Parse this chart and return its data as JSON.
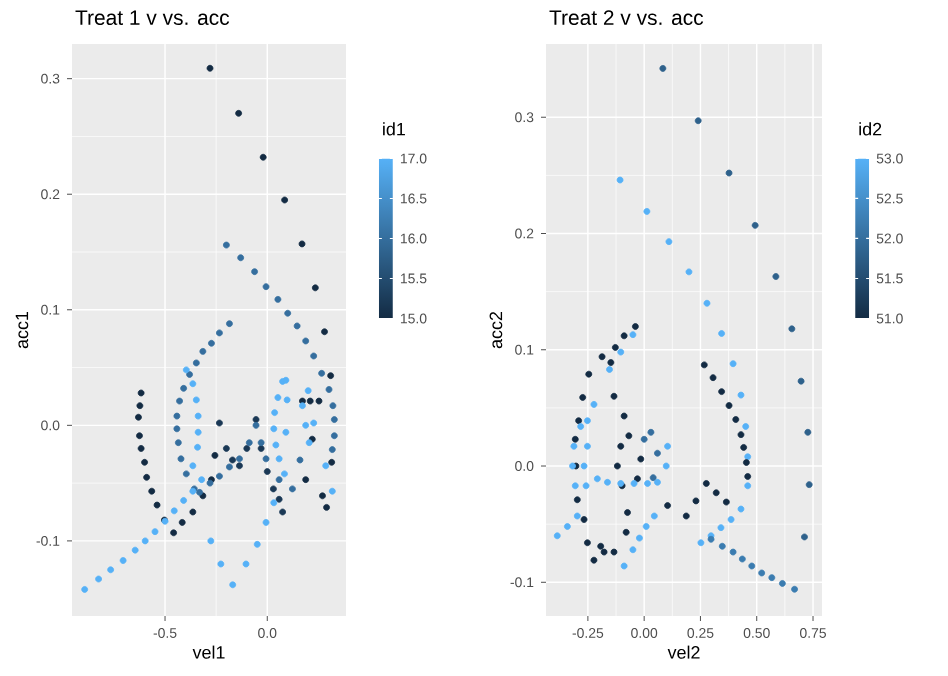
{
  "chart_data": [
    {
      "type": "scatter",
      "title": "Treat 1 v vs. acc",
      "xlabel": "vel1",
      "ylabel": "acc1",
      "clabel": "id1",
      "grid": true,
      "marker": "circle",
      "xlim": [
        -0.955,
        0.385
      ],
      "ylim": [
        -0.165,
        0.33
      ],
      "xticks": [
        {
          "value": -0.5,
          "label": "-0.5"
        },
        {
          "value": 0,
          "label": "0.0"
        }
      ],
      "yticks": [
        {
          "value": -0.1,
          "label": "-0.1"
        },
        {
          "value": 0,
          "label": "0.0"
        },
        {
          "value": 0.1,
          "label": "0.1"
        },
        {
          "value": 0.2,
          "label": "0.2"
        },
        {
          "value": 0.3,
          "label": "0.3"
        }
      ],
      "clim": [
        15,
        17
      ],
      "cticks": [
        {
          "value": 15,
          "label": "15.0"
        },
        {
          "value": 15.5,
          "label": "15.5"
        },
        {
          "value": 16,
          "label": "16.0"
        },
        {
          "value": 16.5,
          "label": "16.5"
        },
        {
          "value": 17,
          "label": "17.0"
        }
      ],
      "x": [
        -0.28,
        -0.14,
        -0.02,
        0.085,
        0.17,
        0.235,
        0.28,
        0.31,
        0.315,
        0.29,
        -0.617,
        -0.623,
        -0.63,
        -0.625,
        -0.617,
        -0.6,
        -0.59,
        -0.565,
        -0.539,
        -0.503,
        -0.458,
        -0.416,
        -0.364,
        -0.315,
        -0.273,
        -0.256,
        -0.234,
        -0.2,
        -0.17,
        -0.136,
        -0.1,
        -0.055,
        -0.03,
        0,
        0.03,
        0.058,
        0.075,
        0.172,
        0.21,
        0.253,
        0.22,
        0.188,
        0.27,
        -0.2,
        -0.13,
        -0.062,
        -0.006,
        0.052,
        0.1,
        0.146,
        0.188,
        0.227,
        0.266,
        0.302,
        0.321,
        0.328,
        0.328,
        0.318,
        -0.185,
        -0.234,
        -0.273,
        -0.315,
        -0.347,
        -0.38,
        -0.409,
        -0.429,
        -0.442,
        -0.442,
        -0.435,
        -0.422,
        -0.396,
        -0.357,
        -0.331,
        -0.28,
        -0.234,
        -0.185,
        -0.136,
        -0.088,
        -0.055,
        -0.03,
        -0.006,
        0.058,
        0.123,
        0.16,
        -0.893,
        -0.825,
        -0.766,
        -0.705,
        -0.646,
        -0.597,
        -0.549,
        -0.5,
        -0.455,
        -0.409,
        -0.364,
        -0.321,
        -0.396,
        -0.364,
        -0.347,
        -0.338,
        -0.338,
        -0.341,
        -0.364,
        -0.276,
        -0.227,
        -0.169,
        -0.104,
        -0.049,
        -0.006,
        0.032,
        0.075,
        0.052,
        0.036,
        0.032,
        0.042,
        0.058,
        0.084,
        0.091,
        0.097,
        0.091,
        0.172,
        0.188,
        0.205,
        0.227,
        0.2,
        0.286,
        0.318
      ],
      "values": [
        0.309,
        0.27,
        0.232,
        0.195,
        0.157,
        0.119,
        0.081,
        0.043,
        -0.032,
        -0.071,
        0.028,
        0.017,
        0.007,
        -0.009,
        -0.02,
        -0.032,
        -0.045,
        -0.057,
        -0.069,
        -0.082,
        -0.093,
        -0.084,
        -0.075,
        -0.061,
        -0.047,
        -0.026,
        0.002,
        -0.02,
        -0.03,
        -0.035,
        -0.02,
        0.005,
        -0.02,
        -0.04,
        -0.055,
        -0.064,
        -0.075,
        0.021,
        0.021,
        0.021,
        -0.012,
        -0.047,
        -0.061,
        0.156,
        0.145,
        0.133,
        0.12,
        0.109,
        0.097,
        0.086,
        0.073,
        0.06,
        0.045,
        0.031,
        0.017,
        0.005,
        -0.009,
        -0.021,
        0.088,
        0.08,
        0.071,
        0.064,
        0.054,
        0.044,
        0.032,
        0.021,
        0.008,
        -0.003,
        -0.015,
        -0.029,
        -0.042,
        -0.055,
        -0.058,
        -0.05,
        -0.044,
        -0.036,
        -0.029,
        -0.015,
        0,
        -0.015,
        -0.029,
        -0.047,
        -0.055,
        -0.03,
        -0.142,
        -0.133,
        -0.125,
        -0.117,
        -0.108,
        -0.1,
        -0.092,
        -0.083,
        -0.074,
        -0.065,
        -0.057,
        -0.047,
        0.048,
        0.036,
        0.022,
        0.008,
        -0.006,
        -0.019,
        -0.035,
        -0.1,
        -0.12,
        -0.138,
        -0.12,
        -0.103,
        -0.084,
        -0.067,
        0.038,
        0.024,
        0.011,
        -0.003,
        -0.017,
        -0.029,
        -0.042,
        0.039,
        0.022,
        -0.006,
        0.017,
        0,
        -0.015,
        0.002,
        0.03,
        -0.035,
        -0.057
      ],
      "cvalues": [
        15,
        15,
        15,
        15,
        15,
        15,
        15,
        15,
        15,
        15,
        15,
        15,
        15,
        15,
        15,
        15,
        15,
        15,
        15,
        15,
        15,
        15,
        15,
        15,
        15,
        15,
        15.2,
        15.2,
        15.2,
        15.2,
        15.2,
        15.2,
        15.2,
        15.2,
        15.2,
        15.2,
        15.2,
        15,
        15,
        15,
        15,
        15,
        15,
        16,
        16,
        16,
        16,
        16,
        16,
        16,
        16,
        16,
        16,
        16,
        16,
        16,
        16,
        16,
        16,
        16,
        16,
        16,
        16,
        16,
        16,
        16,
        16,
        16,
        16,
        16,
        16,
        16,
        16,
        16,
        16,
        16,
        16,
        16,
        16,
        16,
        16,
        16,
        16,
        16,
        17,
        17,
        17,
        17,
        17,
        17,
        17,
        17,
        17,
        17,
        17,
        17,
        17,
        17,
        17,
        17,
        17,
        17,
        17,
        17,
        17,
        17,
        17,
        17,
        17,
        17,
        17,
        17,
        17,
        17,
        17,
        17,
        17,
        17,
        17,
        17,
        17,
        17,
        17,
        17,
        17,
        17,
        17
      ]
    },
    {
      "type": "scatter",
      "title": "Treat 2 v vs. acc",
      "xlabel": "vel2",
      "ylabel": "acc2",
      "clabel": "id2",
      "grid": true,
      "marker": "circle",
      "xlim": [
        -0.436,
        0.79
      ],
      "ylim": [
        -0.129,
        0.363
      ],
      "xticks": [
        {
          "value": -0.25,
          "label": "-0.25"
        },
        {
          "value": 0,
          "label": "0.00"
        },
        {
          "value": 0.25,
          "label": "0.25"
        },
        {
          "value": 0.5,
          "label": "0.50"
        },
        {
          "value": 0.75,
          "label": "0.75"
        }
      ],
      "yticks": [
        {
          "value": -0.1,
          "label": "-0.1"
        },
        {
          "value": 0,
          "label": "0.0"
        },
        {
          "value": 0.1,
          "label": "0.1"
        },
        {
          "value": 0.2,
          "label": "0.2"
        },
        {
          "value": 0.3,
          "label": "0.3"
        }
      ],
      "clim": [
        51,
        53
      ],
      "cticks": [
        {
          "value": 51,
          "label": "51.0"
        },
        {
          "value": 51.5,
          "label": "51.5"
        },
        {
          "value": 52,
          "label": "52.0"
        },
        {
          "value": 52.5,
          "label": "52.5"
        },
        {
          "value": 53,
          "label": "53.0"
        }
      ],
      "x": [
        0.083,
        0.24,
        0.377,
        0.493,
        0.585,
        0.656,
        0.697,
        0.727,
        0.733,
        0.712,
        -0.107,
        0.012,
        0.11,
        0.199,
        0.279,
        0.344,
        0.395,
        0.43,
        0.451,
        0.46,
        0.46,
        0.43,
        0.386,
        0.341,
        0.297,
        0.252,
        0.267,
        0.306,
        0.344,
        0.377,
        0.407,
        0.43,
        0.442,
        0.454,
        0.46,
        0.104,
        0.187,
        0.23,
        0.276,
        0.32,
        0.365,
        -0.039,
        -0.089,
        -0.128,
        -0.148,
        -0.187,
        -0.246,
        -0.273,
        -0.291,
        -0.306,
        -0.303,
        -0.297,
        -0.267,
        -0.252,
        -0.223,
        -0.178,
        -0.134,
        -0.08,
        -0.074,
        -0.089,
        -0.134,
        -0.193,
        -0.119,
        -0.104,
        -0.068,
        -0.098,
        -0.03,
        -0.015,
        0,
        0.03,
        0.059,
        0.04,
        -0.282,
        -0.312,
        -0.318,
        -0.306,
        -0.267,
        -0.252,
        -0.258,
        -0.208,
        -0.163,
        -0.104,
        -0.045,
        0.015,
        0.059,
        0.098,
        0.104,
        -0.386,
        -0.341,
        -0.297,
        -0.089,
        -0.05,
        -0.021,
        0.009,
        0.045,
        -0.05,
        -0.104,
        -0.154,
        -0.223,
        -0.252,
        0.297,
        0.347,
        0.395,
        0.436,
        0.478,
        0.522,
        0.567,
        0.614,
        0.668
      ],
      "values": [
        0.342,
        0.297,
        0.252,
        0.207,
        0.163,
        0.118,
        0.073,
        0.029,
        -0.016,
        -0.061,
        0.246,
        0.219,
        0.193,
        0.167,
        0.14,
        0.114,
        0.088,
        0.061,
        0.034,
        0.008,
        -0.017,
        -0.037,
        -0.046,
        -0.053,
        -0.06,
        -0.066,
        0.087,
        0.076,
        0.064,
        0.052,
        0.04,
        0.027,
        0.016,
        0.003,
        -0.009,
        -0.034,
        -0.043,
        -0.03,
        -0.015,
        -0.023,
        -0.031,
        0.12,
        0.112,
        0.102,
        0.089,
        0.094,
        0.079,
        0.059,
        0.039,
        0.023,
        0,
        -0.029,
        -0.046,
        -0.066,
        -0.081,
        -0.074,
        -0.074,
        -0.057,
        -0.04,
        0.043,
        0.06,
        -0.069,
        0,
        0.017,
        0.026,
        -0.017,
        -0.011,
        0.006,
        0.023,
        0.029,
        0.011,
        -0.01,
        0.034,
        0.017,
        0,
        -0.017,
        0,
        0.017,
        -0.017,
        -0.011,
        -0.014,
        -0.015,
        -0.015,
        -0.015,
        -0.014,
        0,
        0.017,
        -0.06,
        -0.052,
        -0.043,
        -0.086,
        -0.072,
        -0.062,
        -0.052,
        -0.043,
        0.113,
        0.098,
        0.083,
        0.053,
        0.039,
        -0.063,
        -0.069,
        -0.074,
        -0.08,
        -0.086,
        -0.092,
        -0.096,
        -0.101,
        -0.106
      ],
      "cvalues": [
        51.8,
        51.8,
        51.8,
        51.8,
        51.8,
        51.8,
        51.8,
        51.8,
        51.8,
        51.8,
        53,
        53,
        53,
        53,
        53,
        53,
        53,
        53,
        53,
        53,
        53,
        53,
        53,
        53,
        53,
        53,
        51,
        51,
        51,
        51,
        51,
        51,
        51,
        51,
        51,
        51,
        51,
        51,
        51,
        51,
        51,
        51,
        51,
        51,
        51,
        51,
        51,
        51,
        51,
        51,
        51,
        51,
        51,
        51,
        51,
        51,
        51,
        51,
        51,
        51,
        51,
        51,
        51,
        51,
        51,
        51,
        51,
        51,
        52,
        52,
        52,
        52,
        53,
        53,
        53,
        53,
        53,
        53,
        53,
        53,
        53,
        53,
        53,
        53,
        53,
        53,
        53,
        53,
        53,
        53,
        53,
        53,
        53,
        53,
        53,
        53,
        53,
        53,
        53,
        53,
        52.2,
        52.2,
        52.2,
        52.2,
        52.2,
        52.2,
        52.2,
        52.2,
        52.2
      ]
    }
  ]
}
